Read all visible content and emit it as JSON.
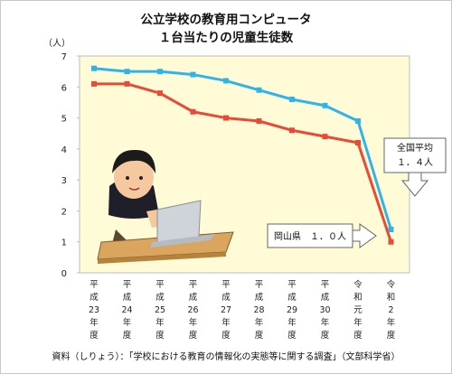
{
  "title": [
    "公立学校の教育用コンピュータ",
    "１台当たりの児童生徒数"
  ],
  "source": "資料（しりょう）：「学校における教育の情報化の実態等に関する調査」（文部科学省）",
  "callouts": {
    "national": [
      "全国平均",
      "１．４人"
    ],
    "okayama": "岡山県　１．０人"
  },
  "chart_data": {
    "type": "line",
    "title": "公立学校の教育用コンピュータ １台当たりの児童生徒数",
    "ylabel": "（人）",
    "ylim": [
      0,
      7
    ],
    "yticks": [
      0,
      1,
      2,
      3,
      4,
      5,
      6,
      7
    ],
    "grid": false,
    "categories": [
      [
        "平",
        "成",
        "23",
        "年",
        "度"
      ],
      [
        "平",
        "成",
        "24",
        "年",
        "度"
      ],
      [
        "平",
        "成",
        "25",
        "年",
        "度"
      ],
      [
        "平",
        "成",
        "26",
        "年",
        "度"
      ],
      [
        "平",
        "成",
        "27",
        "年",
        "度"
      ],
      [
        "平",
        "成",
        "28",
        "年",
        "度"
      ],
      [
        "平",
        "成",
        "29",
        "年",
        "度"
      ],
      [
        "平",
        "成",
        "30",
        "年",
        "度"
      ],
      [
        "令",
        "和",
        "元",
        "年",
        "度"
      ],
      [
        "令",
        "和",
        "2",
        "年",
        "度"
      ]
    ],
    "series": [
      {
        "name": "全国平均",
        "color": "#2fb4ea",
        "values": [
          6.6,
          6.5,
          6.5,
          6.4,
          6.2,
          5.9,
          5.6,
          5.4,
          4.9,
          1.4
        ]
      },
      {
        "name": "岡山県",
        "color": "#e84a36",
        "values": [
          6.1,
          6.1,
          5.8,
          5.2,
          5.0,
          4.9,
          4.6,
          4.4,
          4.2,
          1.0
        ]
      }
    ],
    "colors": {
      "plot_bg": "#fffbd6",
      "axis": "#bdbdbd"
    }
  }
}
